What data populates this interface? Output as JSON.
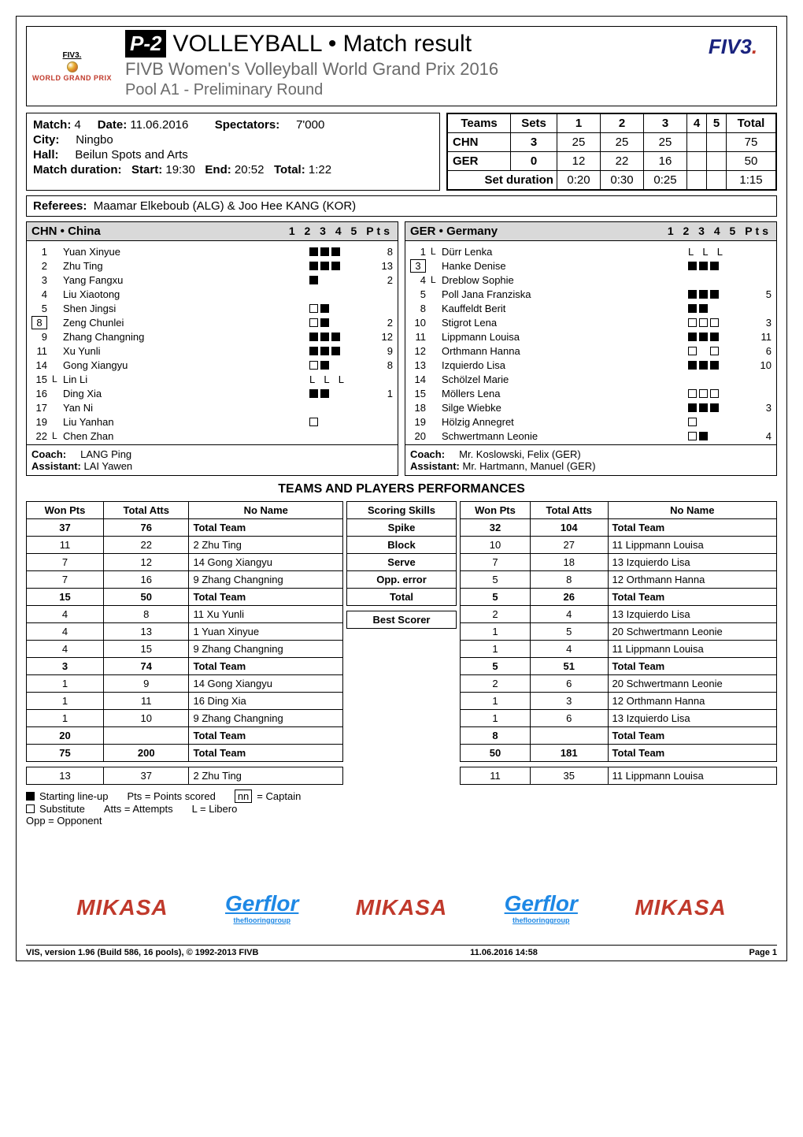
{
  "header": {
    "p2": "P-2",
    "title": "VOLLEYBALL • Match result",
    "sub": "FIVB Women's Volleyball World Grand Prix 2016",
    "pool": "Pool A1 - Preliminary Round",
    "fivb": "FIV3",
    "wgp": {
      "mini": "FIV3.",
      "line": "WORLD GRAND PRIX"
    }
  },
  "match_info": {
    "match_lbl": "Match:",
    "match_no": "4",
    "date_lbl": "Date:",
    "date": "11.06.2016",
    "spect_lbl": "Spectators:",
    "spect": "7'000",
    "city_lbl": "City:",
    "city": "Ningbo",
    "hall_lbl": "Hall:",
    "hall": "Beilun Spots and Arts",
    "dur_lbl": "Match duration:",
    "dur_start_lbl": "Start:",
    "dur_start": "19:30",
    "dur_end_lbl": "End:",
    "dur_end": "20:52",
    "dur_total_lbl": "Total:",
    "dur_total": "1:22"
  },
  "scorebox": {
    "cols": [
      "Teams",
      "Sets",
      "1",
      "2",
      "3",
      "4",
      "5",
      "Total"
    ],
    "rows": [
      {
        "team": "CHN",
        "sets": "3",
        "s": [
          "25",
          "25",
          "25",
          "",
          ""
        ],
        "total": "75"
      },
      {
        "team": "GER",
        "sets": "0",
        "s": [
          "12",
          "22",
          "16",
          "",
          ""
        ],
        "total": "50"
      }
    ],
    "setdur_lbl": "Set duration",
    "setdur": [
      "0:20",
      "0:30",
      "0:25",
      "",
      ""
    ],
    "setdur_total": "1:15"
  },
  "referees": {
    "lbl": "Referees:",
    "val": "Maamar Elkeboub (ALG) & Joo Hee KANG (KOR)"
  },
  "roster_cols": "1  2  3  4  5    Pts",
  "teamA": {
    "code": "CHN",
    "name": "China",
    "players": [
      {
        "n": "1",
        "name": "Yuan Xinyue",
        "marks": [
          "f",
          "f",
          "f"
        ],
        "pts": "8"
      },
      {
        "n": "2",
        "name": "Zhu Ting",
        "marks": [
          "f",
          "f",
          "f"
        ],
        "pts": "13"
      },
      {
        "n": "3",
        "name": "Yang Fangxu",
        "marks": [
          "f"
        ],
        "pts": "2"
      },
      {
        "n": "4",
        "name": "Liu Xiaotong",
        "marks": [],
        "pts": ""
      },
      {
        "n": "5",
        "name": "Shen Jingsi",
        "marks": [
          "e",
          "f"
        ],
        "pts": ""
      },
      {
        "n": "8",
        "cap": true,
        "name": "Zeng Chunlei",
        "marks": [
          "e",
          "f"
        ],
        "pts": "2"
      },
      {
        "n": "9",
        "name": "Zhang Changning",
        "marks": [
          "f",
          "f",
          "f"
        ],
        "pts": "12"
      },
      {
        "n": "11",
        "name": "Xu Yunli",
        "marks": [
          "f",
          "f",
          "f"
        ],
        "pts": "9"
      },
      {
        "n": "14",
        "name": "Gong Xiangyu",
        "marks": [
          "e",
          "f"
        ],
        "pts": "8"
      },
      {
        "n": "15",
        "lib": "L",
        "name": "Lin Li",
        "letters": "L  L  L",
        "pts": ""
      },
      {
        "n": "16",
        "name": "Ding Xia",
        "marks": [
          "f",
          "f"
        ],
        "pts": "1"
      },
      {
        "n": "17",
        "name": "Yan Ni",
        "marks": [],
        "pts": ""
      },
      {
        "n": "19",
        "name": "Liu Yanhan",
        "marks": [
          "e"
        ],
        "pts": ""
      },
      {
        "n": "22",
        "lib": "L",
        "name": "Chen Zhan",
        "marks": [],
        "pts": ""
      }
    ],
    "coach_lbl": "Coach:",
    "coach": "LANG Ping",
    "asst_lbl": "Assistant:",
    "asst": "LAI Yawen"
  },
  "teamB": {
    "code": "GER",
    "name": "Germany",
    "players": [
      {
        "n": "1",
        "lib": "L",
        "name": "Dürr Lenka",
        "letters": "L  L  L",
        "pts": ""
      },
      {
        "n": "3",
        "cap": true,
        "name": "Hanke Denise",
        "marks": [
          "f",
          "f",
          "f"
        ],
        "pts": ""
      },
      {
        "n": "4",
        "lib": "L",
        "name": "Dreblow Sophie",
        "marks": [],
        "pts": ""
      },
      {
        "n": "5",
        "name": "Poll Jana Franziska",
        "marks": [
          "f",
          "f",
          "f"
        ],
        "pts": "5"
      },
      {
        "n": "8",
        "name": "Kauffeldt Berit",
        "marks": [
          "f",
          "f"
        ],
        "pts": ""
      },
      {
        "n": "10",
        "name": "Stigrot Lena",
        "marks": [
          "e",
          "e",
          "e"
        ],
        "pts": "3"
      },
      {
        "n": "11",
        "name": "Lippmann Louisa",
        "marks": [
          "f",
          "f",
          "f"
        ],
        "pts": "11"
      },
      {
        "n": "12",
        "name": "Orthmann Hanna",
        "marks": [
          "e",
          "",
          "e"
        ],
        "pts": "6"
      },
      {
        "n": "13",
        "name": "Izquierdo Lisa",
        "marks": [
          "f",
          "f",
          "f"
        ],
        "pts": "10"
      },
      {
        "n": "14",
        "name": "Schölzel Marie",
        "marks": [],
        "pts": ""
      },
      {
        "n": "15",
        "name": "Möllers Lena",
        "marks": [
          "e",
          "e",
          "e"
        ],
        "pts": ""
      },
      {
        "n": "18",
        "name": "Silge Wiebke",
        "marks": [
          "f",
          "f",
          "f"
        ],
        "pts": "3"
      },
      {
        "n": "19",
        "name": "Hölzig Annegret",
        "marks": [
          "e"
        ],
        "pts": ""
      },
      {
        "n": "20",
        "name": "Schwertmann Leonie",
        "marks": [
          "e",
          "f"
        ],
        "pts": "4"
      }
    ],
    "coach_lbl": "Coach:",
    "coach": "Mr. Koslowski, Felix (GER)",
    "asst_lbl": "Assistant:",
    "asst": "Mr. Hartmann, Manuel (GER)"
  },
  "perf_title": "TEAMS AND PLAYERS PERFORMANCES",
  "perf": {
    "side_cols": [
      "Won Pts",
      "Total Atts",
      "No Name"
    ],
    "mid_col": "Scoring Skills",
    "groups": [
      {
        "skill": "Spike",
        "A_total": {
          "won": "37",
          "atts": "76",
          "name": "Total Team"
        },
        "A": [
          {
            "won": "11",
            "atts": "22",
            "name": "2  Zhu Ting"
          },
          {
            "won": "7",
            "atts": "12",
            "name": "14  Gong Xiangyu"
          },
          {
            "won": "7",
            "atts": "16",
            "name": "9  Zhang Changning"
          }
        ],
        "B_total": {
          "won": "32",
          "atts": "104",
          "name": "Total Team"
        },
        "B": [
          {
            "won": "10",
            "atts": "27",
            "name": "11  Lippmann Louisa"
          },
          {
            "won": "7",
            "atts": "18",
            "name": "13  Izquierdo Lisa"
          },
          {
            "won": "5",
            "atts": "8",
            "name": "12  Orthmann Hanna"
          }
        ]
      },
      {
        "skill": "Block",
        "A_total": {
          "won": "15",
          "atts": "50",
          "name": "Total Team"
        },
        "A": [
          {
            "won": "4",
            "atts": "8",
            "name": "11  Xu Yunli"
          },
          {
            "won": "4",
            "atts": "13",
            "name": "1  Yuan Xinyue"
          },
          {
            "won": "4",
            "atts": "15",
            "name": "9  Zhang Changning"
          }
        ],
        "B_total": {
          "won": "5",
          "atts": "26",
          "name": "Total Team"
        },
        "B": [
          {
            "won": "2",
            "atts": "4",
            "name": "13  Izquierdo Lisa"
          },
          {
            "won": "1",
            "atts": "5",
            "name": "20  Schwertmann Leonie"
          },
          {
            "won": "1",
            "atts": "4",
            "name": "11  Lippmann Louisa"
          }
        ]
      },
      {
        "skill": "Serve",
        "A_total": {
          "won": "3",
          "atts": "74",
          "name": "Total Team"
        },
        "A": [
          {
            "won": "1",
            "atts": "9",
            "name": "14  Gong Xiangyu"
          },
          {
            "won": "1",
            "atts": "11",
            "name": "16  Ding Xia"
          },
          {
            "won": "1",
            "atts": "10",
            "name": "9  Zhang Changning"
          }
        ],
        "B_total": {
          "won": "5",
          "atts": "51",
          "name": "Total Team"
        },
        "B": [
          {
            "won": "2",
            "atts": "6",
            "name": "20  Schwertmann Leonie"
          },
          {
            "won": "1",
            "atts": "3",
            "name": "12  Orthmann Hanna"
          },
          {
            "won": "1",
            "atts": "6",
            "name": "13  Izquierdo Lisa"
          }
        ]
      }
    ],
    "opp_err": {
      "lbl": "Opp. error",
      "A": {
        "won": "20",
        "atts": "",
        "name": "Total Team"
      },
      "B": {
        "won": "8",
        "atts": "",
        "name": "Total Team"
      }
    },
    "total": {
      "lbl": "Total",
      "A": {
        "won": "75",
        "atts": "200",
        "name": "Total Team"
      },
      "B": {
        "won": "50",
        "atts": "181",
        "name": "Total Team"
      }
    },
    "best": {
      "lbl": "Best Scorer",
      "A": {
        "won": "13",
        "atts": "37",
        "name": "2  Zhu Ting"
      },
      "B": {
        "won": "11",
        "atts": "35",
        "name": "11  Lippmann Louisa"
      }
    }
  },
  "legend": {
    "l1a": "Starting line-up",
    "l1b": "Pts = Points scored",
    "l1c_box": "nn",
    "l1c": " = Captain",
    "l2a": "Substitute",
    "l2b": "Atts = Attempts",
    "l2c": "L = Libero",
    "l3": "Opp = Opponent"
  },
  "sponsors": [
    "MIKASA",
    "Gerflor",
    "MIKASA",
    "Gerflor",
    "MIKASA"
  ],
  "gerflor_sub": "theflooringgroup",
  "footer": {
    "left": "VIS, version 1.96 (Build 586, 16 pools), © 1992-2013 FIVB",
    "mid": "11.06.2016  14:58",
    "right": "Page 1"
  }
}
